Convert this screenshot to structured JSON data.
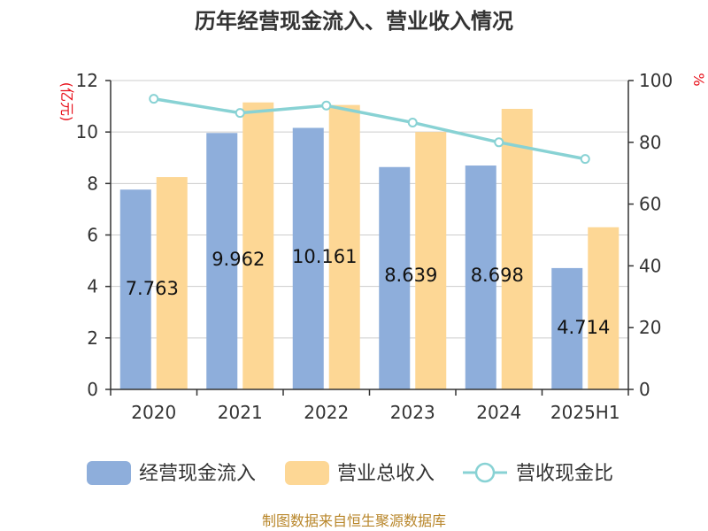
{
  "chart_data": {
    "type": "bar",
    "title": "历年经营现金流入、营业收入情况",
    "left_unit": "(亿元)",
    "right_unit": "%",
    "categories": [
      "2020",
      "2021",
      "2022",
      "2023",
      "2024",
      "2025H1"
    ],
    "ylim": [
      0,
      12
    ],
    "y_ticks": [
      "0",
      "2",
      "4",
      "6",
      "8",
      "10",
      "12"
    ],
    "y2lim": [
      0,
      100
    ],
    "y2_ticks": [
      "0",
      "20",
      "40",
      "60",
      "80",
      "100"
    ],
    "grid": true,
    "legend_position": "bottom",
    "series": [
      {
        "name": "经营现金流入",
        "type": "bar",
        "axis": "left",
        "color": "#8eaedb",
        "values": [
          7.763,
          9.962,
          10.161,
          8.639,
          8.698,
          4.714
        ],
        "labels": [
          "7.763",
          "9.962",
          "10.161",
          "8.639",
          "8.698",
          "4.714"
        ]
      },
      {
        "name": "营业总收入",
        "type": "bar",
        "axis": "left",
        "color": "#fdd795",
        "values": [
          8.25,
          11.15,
          11.05,
          10.0,
          10.9,
          6.3
        ]
      },
      {
        "name": "营收现金比",
        "type": "line",
        "axis": "right",
        "color": "#88d2d4",
        "values": [
          94.1,
          89.5,
          91.9,
          86.4,
          80.0,
          74.6
        ]
      }
    ],
    "source": "制图数据来自恒生聚源数据库"
  }
}
